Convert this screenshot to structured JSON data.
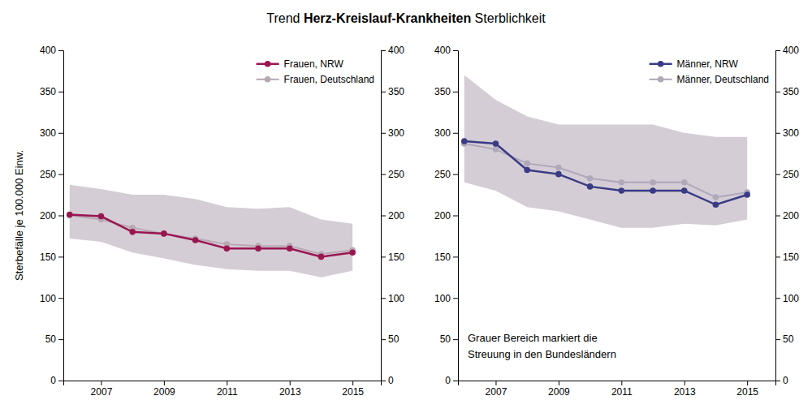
{
  "chart_data": [
    {
      "type": "line",
      "title": [
        "Trend ",
        "Herz-Kreislauf-Krankheiten",
        " Sterblichkeit"
      ],
      "ylabel": "Sterbefälle je 100.000 Einw.",
      "x": [
        2006,
        2007,
        2008,
        2009,
        2010,
        2011,
        2012,
        2013,
        2014,
        2015
      ],
      "xlim": [
        2005.8,
        2015.9
      ],
      "xticks": [
        2007,
        2009,
        2011,
        2013,
        2015
      ],
      "ylim": [
        0,
        400
      ],
      "yticks": [
        0,
        50,
        100,
        150,
        200,
        250,
        300,
        350,
        400
      ],
      "y2lim": [
        0,
        400
      ],
      "y2ticks": [
        0,
        50,
        100,
        150,
        200,
        250,
        300,
        350,
        400
      ],
      "grid": false,
      "legend": "upper right",
      "series": [
        {
          "type": "band",
          "color": "#D5CDD5",
          "lower": [
            172,
            168,
            155,
            148,
            140,
            135,
            133,
            133,
            125,
            133
          ],
          "upper": [
            237,
            232,
            225,
            225,
            220,
            210,
            208,
            210,
            195,
            190
          ]
        },
        {
          "name": "Frauen, NRW",
          "color": "#991650",
          "marker": "circle",
          "values": [
            201,
            199,
            180,
            178,
            170,
            160,
            160,
            160,
            150,
            155
          ]
        },
        {
          "name": "Frauen, Deutschland",
          "color": "#B8A8B4",
          "marker": "circle",
          "values": [
            200,
            195,
            185,
            178,
            172,
            165,
            163,
            163,
            153,
            158
          ]
        }
      ]
    },
    {
      "type": "line",
      "annotation": "Grauer Bereich markiert die\nStreuung in den Bundesländern",
      "x": [
        2006,
        2007,
        2008,
        2009,
        2010,
        2011,
        2012,
        2013,
        2014,
        2015
      ],
      "xlim": [
        2005.8,
        2015.9
      ],
      "xticks": [
        2007,
        2009,
        2011,
        2013,
        2015
      ],
      "ylim": [
        0,
        400
      ],
      "yticks": [
        0,
        50,
        100,
        150,
        200,
        250,
        300,
        350,
        400
      ],
      "y2lim": [
        0,
        400
      ],
      "y2ticks": [
        0,
        50,
        100,
        150,
        200,
        250,
        300,
        350,
        400
      ],
      "grid": false,
      "legend": "upper right",
      "series": [
        {
          "type": "band",
          "color": "#D5CDD5",
          "lower": [
            240,
            230,
            210,
            205,
            195,
            185,
            185,
            190,
            188,
            195
          ],
          "upper": [
            370,
            340,
            320,
            310,
            310,
            310,
            310,
            300,
            295,
            295
          ]
        },
        {
          "name": "Männer, NRW",
          "color": "#393B85",
          "marker": "circle",
          "values": [
            290,
            287,
            255,
            250,
            235,
            230,
            230,
            230,
            213,
            225
          ]
        },
        {
          "name": "Männer, Deutschland",
          "color": "#AFA9BA",
          "marker": "circle",
          "values": [
            287,
            280,
            263,
            258,
            245,
            240,
            240,
            240,
            222,
            228
          ]
        }
      ]
    }
  ]
}
